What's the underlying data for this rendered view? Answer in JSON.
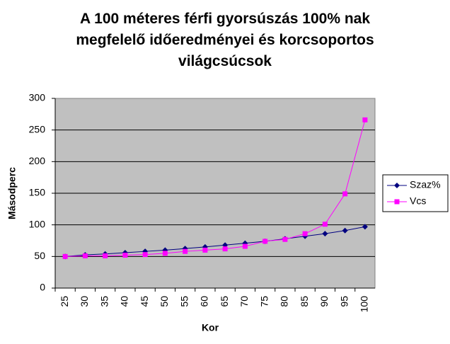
{
  "chart_data": {
    "type": "line",
    "title": "A 100 méteres férfi gyorsúszás 100% nak megfelelő időeredményei és korcsoportos világcsúcsok",
    "x_label": "Kor",
    "y_label": "Másodperc",
    "categories": [
      "25",
      "30",
      "35",
      "40",
      "45",
      "50",
      "55",
      "60",
      "65",
      "70",
      "75",
      "80",
      "85",
      "90",
      "95",
      "100"
    ],
    "series": [
      {
        "name": "Szaz%",
        "color": "#000080",
        "marker": "diamond",
        "values": [
          50,
          52.5,
          54,
          56,
          58,
          60,
          62.5,
          65,
          68,
          71,
          74,
          78,
          82,
          86,
          91,
          97
        ]
      },
      {
        "name": "Vcs",
        "color": "#ff00ff",
        "marker": "square",
        "values": [
          50,
          51,
          51,
          52,
          53,
          55,
          58,
          60,
          62,
          66,
          74,
          77,
          86,
          101,
          149,
          266
        ]
      }
    ],
    "ylim": [
      0,
      300
    ],
    "yticks": [
      0,
      50,
      100,
      150,
      200,
      250,
      300
    ],
    "grid": true,
    "legend": "right"
  }
}
